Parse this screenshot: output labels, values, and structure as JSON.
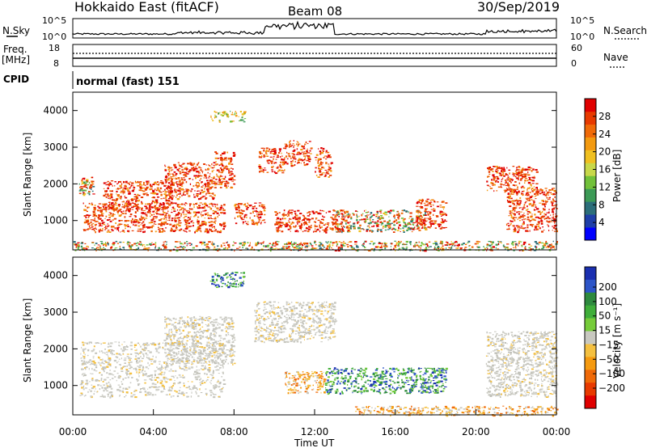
{
  "header": {
    "station": "Hokkaido East (fitACF)",
    "beam": "Beam 08",
    "date": "30/Sep/2019"
  },
  "top_panels": {
    "nsky": {
      "label": "N.Sky",
      "tick_top": "10^5",
      "tick_bottom": "10^0"
    },
    "nsearch": {
      "label": "N.Search",
      "tick_top": "10^5",
      "tick_bottom": "10^0"
    },
    "freq": {
      "label_line1": "Freq.",
      "label_line2": "[MHz]",
      "tick_top": "18",
      "tick_bottom": "8"
    },
    "nave": {
      "label": "Nave",
      "tick_top": "60",
      "tick_bottom": "0"
    },
    "cpid": {
      "label": "CPID",
      "value": "normal (fast) 151"
    }
  },
  "chart_data": [
    {
      "type": "heatmap",
      "quantity": "Power",
      "ylabel": "Slant Range [km]",
      "yticks": [
        "1000",
        "2000",
        "3000",
        "4000"
      ],
      "ylim": [
        200,
        4500
      ],
      "xlim_hours": [
        0,
        24
      ],
      "colorbar": {
        "label": "Power [dB]",
        "ticks": [
          "4",
          "8",
          "12",
          "16",
          "20",
          "24",
          "28"
        ],
        "colors": [
          "#0000ff",
          "#1f3fa8",
          "#2c6e7a",
          "#3c9a56",
          "#72c13a",
          "#c8d84a",
          "#f0c020",
          "#f39a10",
          "#f06a08",
          "#e83a00",
          "#e00000"
        ]
      },
      "echo_regions": [
        {
          "t_start": 0.3,
          "t_end": 1.0,
          "r_start": 1700,
          "r_end": 2200,
          "level": "mixed"
        },
        {
          "t_start": 0.5,
          "t_end": 7.5,
          "r_start": 700,
          "r_end": 1500,
          "level": "high"
        },
        {
          "t_start": 1.5,
          "t_end": 5.0,
          "r_start": 1300,
          "r_end": 2100,
          "level": "high"
        },
        {
          "t_start": 4.5,
          "t_end": 7.0,
          "r_start": 1600,
          "r_end": 2600,
          "level": "high"
        },
        {
          "t_start": 7.0,
          "t_end": 8.0,
          "r_start": 1900,
          "r_end": 2900,
          "level": "high"
        },
        {
          "t_start": 6.8,
          "t_end": 8.5,
          "r_start": 3700,
          "r_end": 4000,
          "level": "medium"
        },
        {
          "t_start": 8.0,
          "t_end": 9.5,
          "r_start": 900,
          "r_end": 1500,
          "level": "high"
        },
        {
          "t_start": 9.2,
          "t_end": 10.5,
          "r_start": 2300,
          "r_end": 3000,
          "level": "high"
        },
        {
          "t_start": 10.5,
          "t_end": 11.8,
          "r_start": 2500,
          "r_end": 3200,
          "level": "high"
        },
        {
          "t_start": 12.0,
          "t_end": 12.8,
          "r_start": 2200,
          "r_end": 3000,
          "level": "high"
        },
        {
          "t_start": 10.0,
          "t_end": 13.5,
          "r_start": 700,
          "r_end": 1300,
          "level": "high"
        },
        {
          "t_start": 13.0,
          "t_end": 17.5,
          "r_start": 700,
          "r_end": 1300,
          "level": "mixed"
        },
        {
          "t_start": 17.0,
          "t_end": 18.5,
          "r_start": 800,
          "r_end": 1600,
          "level": "high"
        },
        {
          "t_start": 20.5,
          "t_end": 23.0,
          "r_start": 1800,
          "r_end": 2500,
          "level": "high"
        },
        {
          "t_start": 21.5,
          "t_end": 24.0,
          "r_start": 700,
          "r_end": 1900,
          "level": "high"
        },
        {
          "t_start": 0.0,
          "t_end": 24.0,
          "r_start": 200,
          "r_end": 450,
          "level": "mixed"
        }
      ]
    },
    {
      "type": "heatmap",
      "quantity": "Velocity",
      "ylabel": "Slant Range [km]",
      "xlabel": "Time UT",
      "xticks": [
        "00:00",
        "04:00",
        "08:00",
        "12:00",
        "16:00",
        "20:00",
        "00:00"
      ],
      "yticks": [
        "1000",
        "2000",
        "3000",
        "4000"
      ],
      "ylim": [
        200,
        4500
      ],
      "xlim_hours": [
        0,
        24
      ],
      "colorbar": {
        "label": "Velocity [m s⁻¹]",
        "ticks": [
          "200",
          "100",
          "50",
          "15",
          "−15",
          "−50",
          "−100",
          "−200"
        ],
        "colors": [
          "#1a2fb0",
          "#2d55c8",
          "#2e8a3e",
          "#3fae3a",
          "#76cc3a",
          "#c8c8c0",
          "#f4c040",
          "#f59a10",
          "#f06a08",
          "#e83a00",
          "#e00000"
        ]
      },
      "echo_regions": [
        {
          "t_start": 0.3,
          "t_end": 7.5,
          "r_start": 700,
          "r_end": 2200,
          "level": "ground"
        },
        {
          "t_start": 4.5,
          "t_end": 8.0,
          "r_start": 1600,
          "r_end": 2900,
          "level": "ground"
        },
        {
          "t_start": 6.8,
          "t_end": 8.5,
          "r_start": 3700,
          "r_end": 4100,
          "level": "positive"
        },
        {
          "t_start": 9.0,
          "t_end": 13.0,
          "r_start": 2200,
          "r_end": 3300,
          "level": "ground"
        },
        {
          "t_start": 10.5,
          "t_end": 12.5,
          "r_start": 800,
          "r_end": 1400,
          "level": "negative"
        },
        {
          "t_start": 12.5,
          "t_end": 18.5,
          "r_start": 800,
          "r_end": 1500,
          "level": "positive"
        },
        {
          "t_start": 20.5,
          "t_end": 24.0,
          "r_start": 700,
          "r_end": 2500,
          "level": "ground"
        },
        {
          "t_start": 14.0,
          "t_end": 24.0,
          "r_start": 200,
          "r_end": 450,
          "level": "negative"
        }
      ]
    }
  ]
}
